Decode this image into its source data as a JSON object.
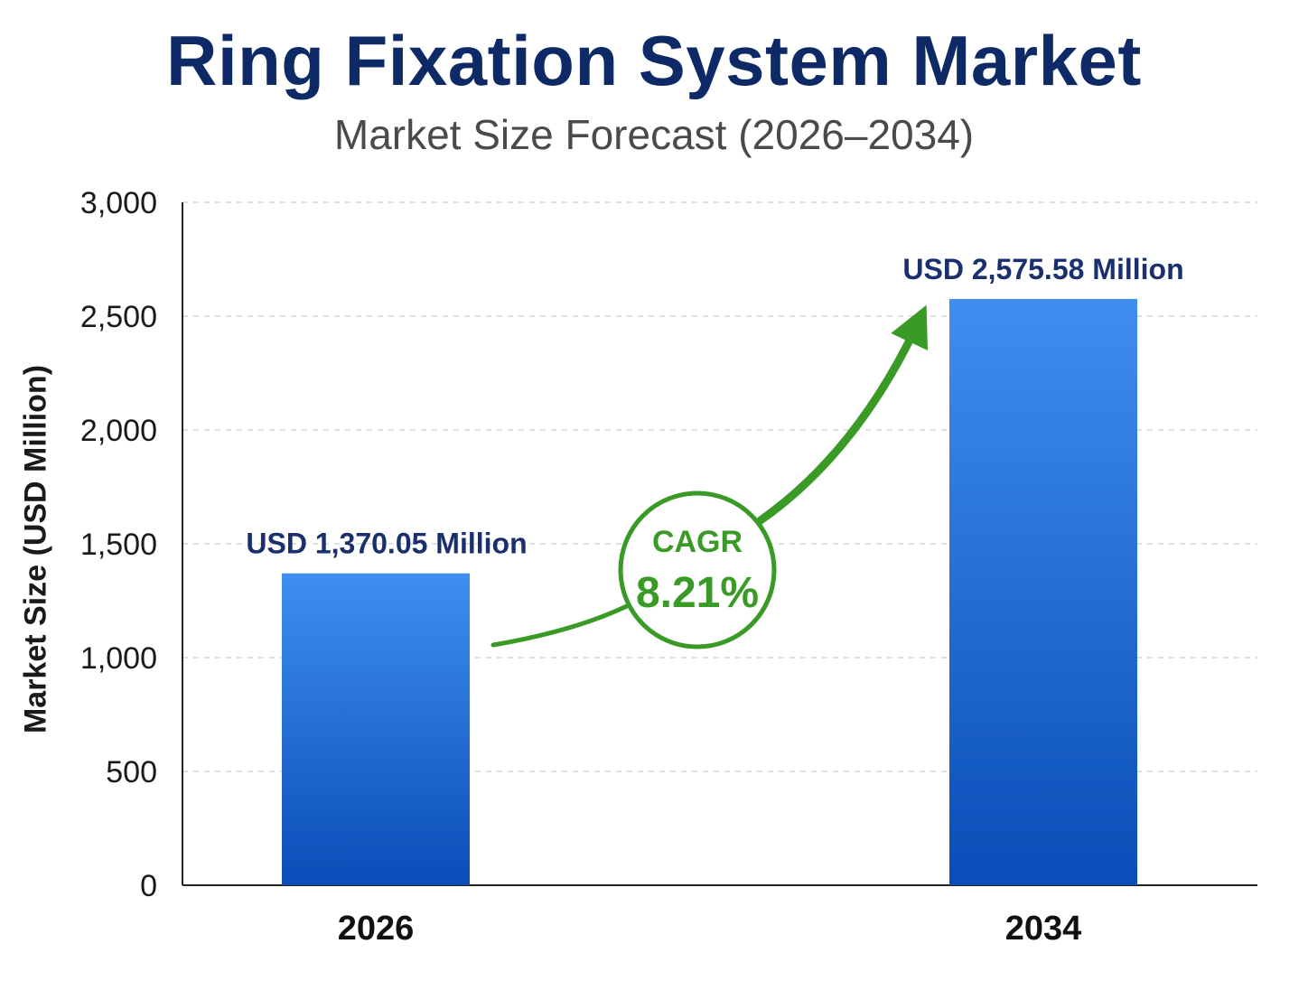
{
  "chart_data": {
    "type": "bar",
    "title": "Ring Fixation System Market",
    "subtitle": "Market Size Forecast (2026–2034)",
    "xlabel": "",
    "ylabel": "Market Size (USD Million)",
    "ylim": [
      0,
      3000
    ],
    "yticks": [
      0,
      500,
      1000,
      1500,
      2000,
      2500,
      3000
    ],
    "ytick_labels": [
      "0",
      "500",
      "1,000",
      "1,500",
      "2,000",
      "2,500",
      "3,000"
    ],
    "categories": [
      "2026",
      "2034"
    ],
    "values": [
      1370.05,
      2575.58
    ],
    "data_labels": [
      "USD 1,370.05 Million",
      "USD 2,575.58 Million"
    ],
    "grid": true,
    "annotation": {
      "label": "CAGR",
      "value": "8.21%"
    },
    "colors": {
      "bar_top": "#3f8ef0",
      "bar_bottom": "#0a4db8",
      "title": "#0e2a66",
      "data_label": "#1a2f6e",
      "cagr": "#3a9a26",
      "grid": "#d6d6d6",
      "axis": "#222222"
    }
  }
}
